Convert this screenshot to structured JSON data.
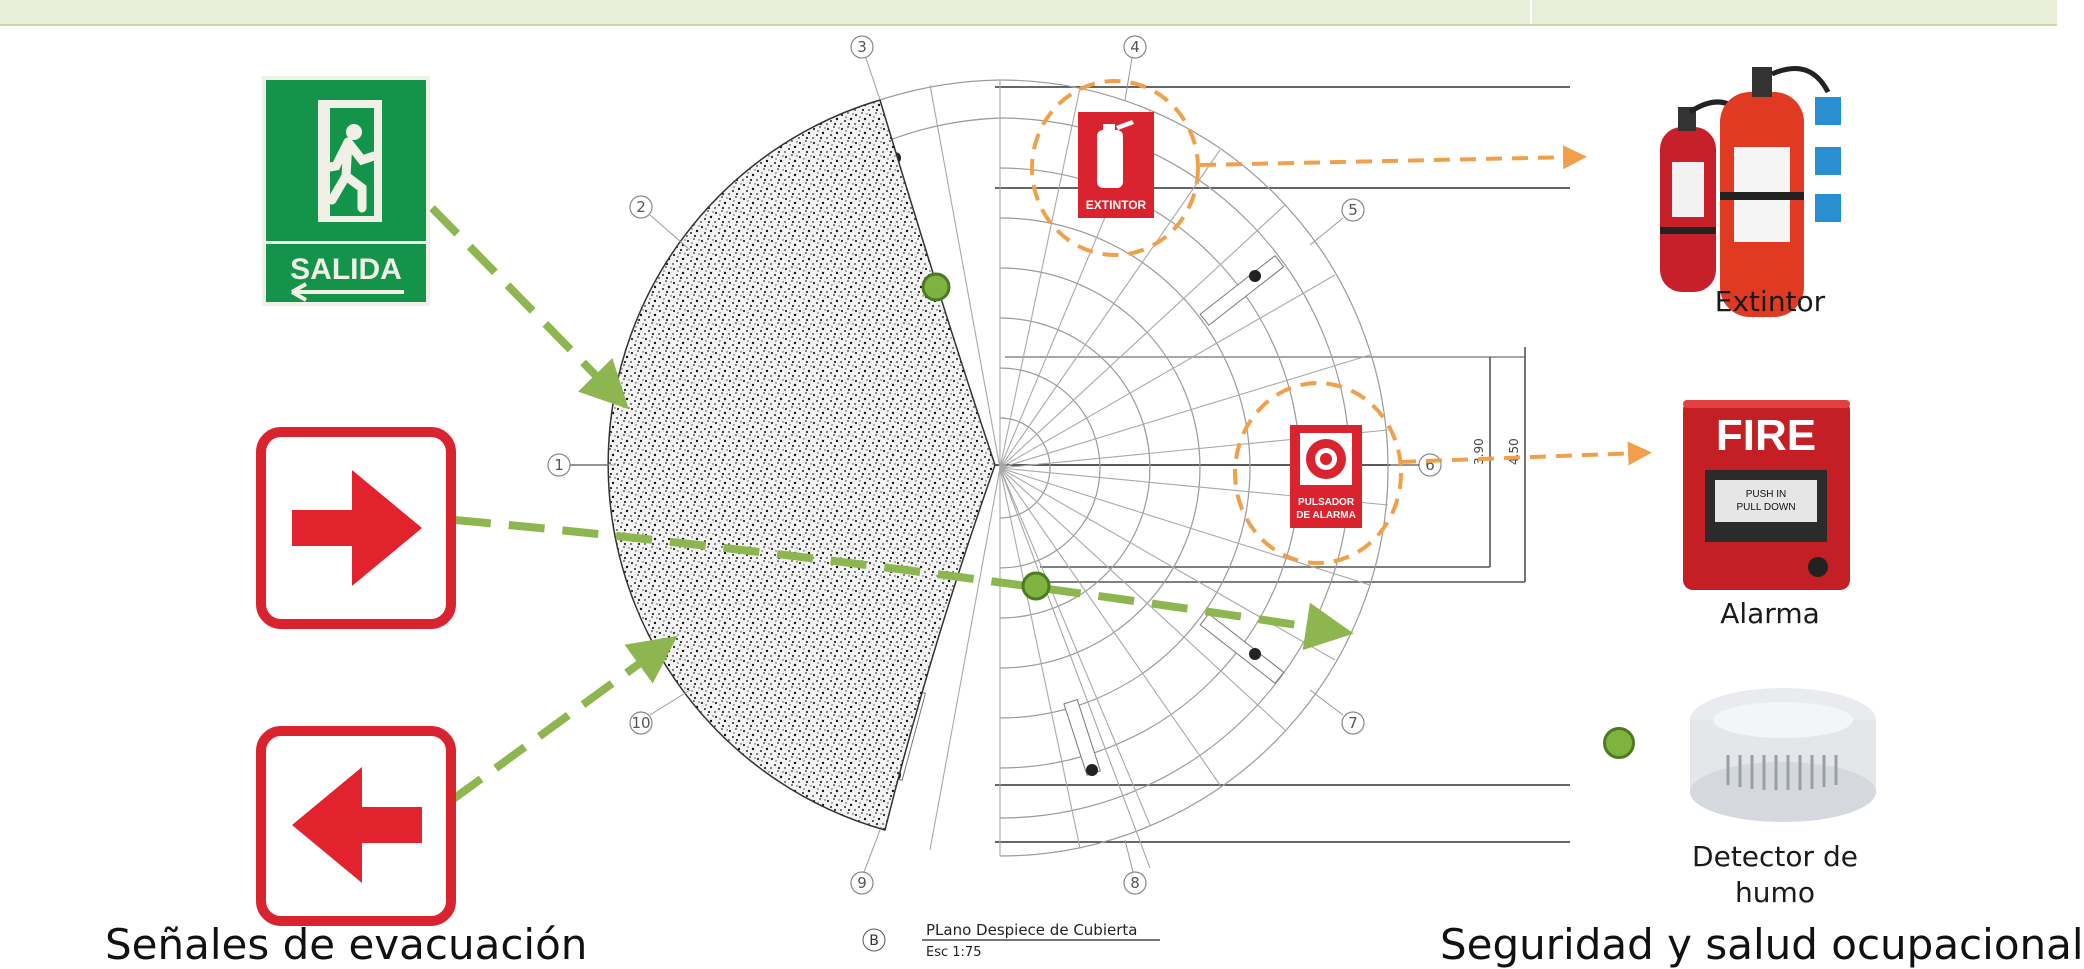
{
  "signs": {
    "salida_label": "SALIDA",
    "extintor_label": "EXTINTOR",
    "pulsador_label_1": "PULSADOR",
    "pulsador_label_2": "DE ALARMA"
  },
  "devices": {
    "extintor": "Extintor",
    "alarma": "Alarma",
    "detector_line1": "Detector de",
    "detector_line2": "humo",
    "fire_text": "FIRE",
    "push_text_1": "PUSH   IN",
    "push_text_2": "PULL DOWN"
  },
  "plan": {
    "axis_numbers": [
      "1",
      "2",
      "3",
      "4",
      "5",
      "6",
      "7",
      "8",
      "9",
      "10"
    ],
    "dim_1": "3.90",
    "dim_2": "4.50",
    "caption_letter": "B",
    "caption_title": "PLano Despiece de Cubierta",
    "caption_scale": "Esc 1:75"
  },
  "footer": {
    "left_text": "Señales de evacuación",
    "right_text": "Seguridad y salud ocupacional"
  },
  "colors": {
    "green_arrow": "#8db650",
    "orange_arrow": "#f0a04a",
    "sign_green": "#0f8a3c",
    "sign_red": "#d9232e"
  }
}
